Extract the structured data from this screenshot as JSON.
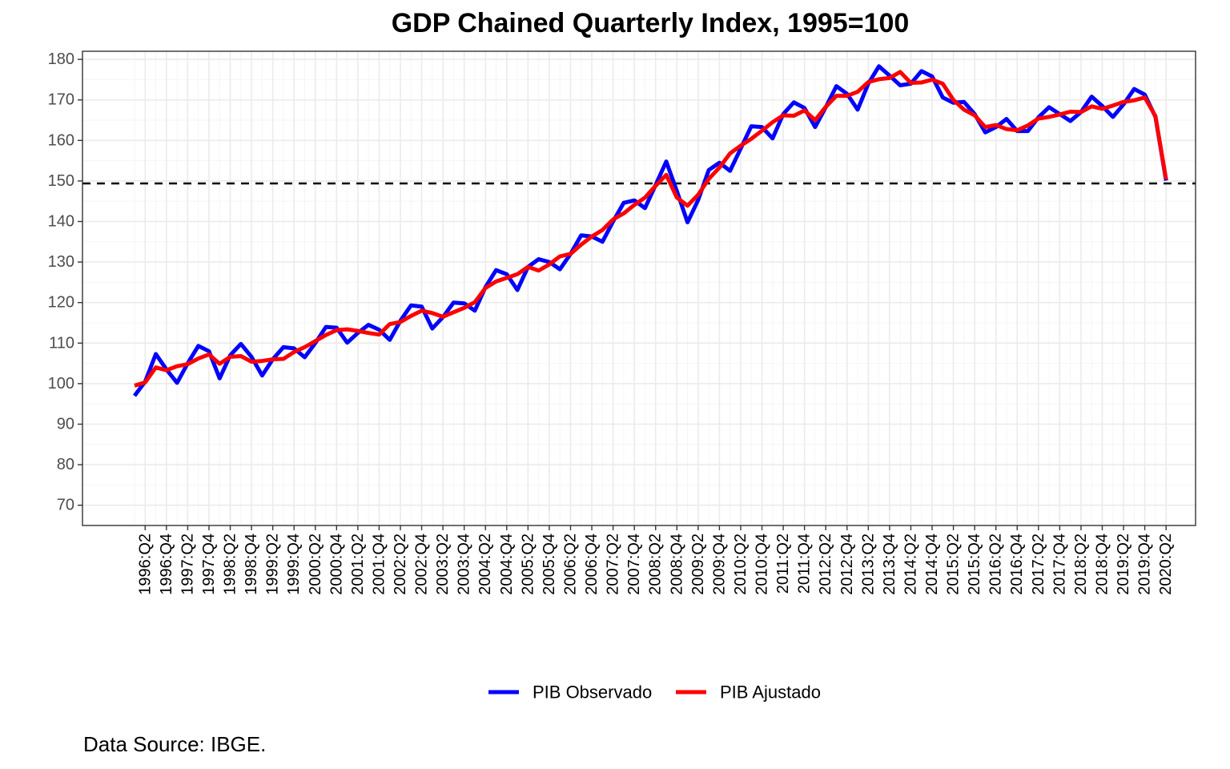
{
  "chart_data": {
    "type": "line",
    "title": "GDP Chained Quarterly Index, 1995=100",
    "xlabel": "",
    "ylabel": "",
    "ylim": [
      65,
      182
    ],
    "yticks": [
      70,
      80,
      90,
      100,
      110,
      120,
      130,
      140,
      150,
      160,
      170,
      180
    ],
    "x": [
      "1996:Q1",
      "1996:Q2",
      "1996:Q3",
      "1996:Q4",
      "1997:Q1",
      "1997:Q2",
      "1997:Q3",
      "1997:Q4",
      "1998:Q1",
      "1998:Q2",
      "1998:Q3",
      "1998:Q4",
      "1999:Q1",
      "1999:Q2",
      "1999:Q3",
      "1999:Q4",
      "2000:Q1",
      "2000:Q2",
      "2000:Q3",
      "2000:Q4",
      "2001:Q1",
      "2001:Q2",
      "2001:Q3",
      "2001:Q4",
      "2002:Q1",
      "2002:Q2",
      "2002:Q3",
      "2002:Q4",
      "2003:Q1",
      "2003:Q2",
      "2003:Q3",
      "2003:Q4",
      "2004:Q1",
      "2004:Q2",
      "2004:Q3",
      "2004:Q4",
      "2005:Q1",
      "2005:Q2",
      "2005:Q3",
      "2005:Q4",
      "2006:Q1",
      "2006:Q2",
      "2006:Q3",
      "2006:Q4",
      "2007:Q1",
      "2007:Q2",
      "2007:Q3",
      "2007:Q4",
      "2008:Q1",
      "2008:Q2",
      "2008:Q3",
      "2008:Q4",
      "2009:Q1",
      "2009:Q2",
      "2009:Q3",
      "2009:Q4",
      "2010:Q1",
      "2010:Q2",
      "2010:Q3",
      "2010:Q4",
      "2011:Q1",
      "2011:Q2",
      "2011:Q3",
      "2011:Q4",
      "2012:Q1",
      "2012:Q2",
      "2012:Q3",
      "2012:Q4",
      "2013:Q1",
      "2013:Q2",
      "2013:Q3",
      "2013:Q4",
      "2014:Q1",
      "2014:Q2",
      "2014:Q3",
      "2014:Q4",
      "2015:Q1",
      "2015:Q2",
      "2015:Q3",
      "2015:Q4",
      "2016:Q1",
      "2016:Q2",
      "2016:Q3",
      "2016:Q4",
      "2017:Q1",
      "2017:Q2",
      "2017:Q3",
      "2017:Q4",
      "2018:Q1",
      "2018:Q2",
      "2018:Q3",
      "2018:Q4",
      "2019:Q1",
      "2019:Q2",
      "2019:Q3",
      "2019:Q4",
      "2020:Q1",
      "2020:Q2"
    ],
    "xtick_labels": [
      "1996:Q2",
      "1996:Q4",
      "1997:Q2",
      "1997:Q4",
      "1998:Q2",
      "1998:Q4",
      "1999:Q2",
      "1999:Q4",
      "2000:Q2",
      "2000:Q4",
      "2001:Q2",
      "2001:Q4",
      "2002:Q2",
      "2002:Q4",
      "2003:Q2",
      "2003:Q4",
      "2004:Q2",
      "2004:Q4",
      "2005:Q2",
      "2005:Q4",
      "2006:Q2",
      "2006:Q4",
      "2007:Q2",
      "2007:Q4",
      "2008:Q2",
      "2008:Q4",
      "2009:Q2",
      "2009:Q4",
      "2010:Q2",
      "2010:Q4",
      "2011:Q2",
      "2011:Q4",
      "2012:Q2",
      "2012:Q4",
      "2013:Q2",
      "2013:Q4",
      "2014:Q2",
      "2014:Q4",
      "2015:Q2",
      "2015:Q4",
      "2016:Q2",
      "2016:Q4",
      "2017:Q2",
      "2017:Q4",
      "2018:Q2",
      "2018:Q4",
      "2019:Q2",
      "2019:Q4",
      "2020:Q2"
    ],
    "reference_line": {
      "y": 149.4,
      "style": "dashed",
      "color": "#000000"
    },
    "series": [
      {
        "name": "PIB Observado",
        "color": "#0000ff",
        "values": [
          97.0,
          100.5,
          107.3,
          103.5,
          100.2,
          105.0,
          109.3,
          108.0,
          101.3,
          107.0,
          109.8,
          106.6,
          102.0,
          106.0,
          109.0,
          108.7,
          106.5,
          110.0,
          114.0,
          113.8,
          110.1,
          112.5,
          114.5,
          113.3,
          110.8,
          115.5,
          119.3,
          119.0,
          113.6,
          116.4,
          120.0,
          119.8,
          118.0,
          123.8,
          128.0,
          127.0,
          123.1,
          128.8,
          130.7,
          130.0,
          128.2,
          132.0,
          136.6,
          136.3,
          135.0,
          140.0,
          144.6,
          145.2,
          143.3,
          149.0,
          154.8,
          147.5,
          139.8,
          145.3,
          152.7,
          154.5,
          152.5,
          158.0,
          163.5,
          163.3,
          160.5,
          166.5,
          169.4,
          168.0,
          163.3,
          168.2,
          173.4,
          171.5,
          167.6,
          174.0,
          178.3,
          176.0,
          173.6,
          174.0,
          177.1,
          175.8,
          170.6,
          169.3,
          169.5,
          166.5,
          162.0,
          163.3,
          165.3,
          162.3,
          162.3,
          165.7,
          168.2,
          166.5,
          164.8,
          167.0,
          170.8,
          168.5,
          165.8,
          168.9,
          172.7,
          171.3,
          165.8,
          150.1
        ]
      },
      {
        "name": "PIB Ajustado",
        "color": "#ff0000",
        "values": [
          99.5,
          100.3,
          104.0,
          103.3,
          104.3,
          104.8,
          106.2,
          107.2,
          104.9,
          106.6,
          106.8,
          105.4,
          105.6,
          106.0,
          106.1,
          107.8,
          109.0,
          110.5,
          112.0,
          113.2,
          113.4,
          113.0,
          112.5,
          112.1,
          114.7,
          115.2,
          116.7,
          118.0,
          117.4,
          116.5,
          117.6,
          118.7,
          120.1,
          123.6,
          125.2,
          126.1,
          127.0,
          128.8,
          127.9,
          129.4,
          131.4,
          132.0,
          134.3,
          136.3,
          137.9,
          140.5,
          142.0,
          144.1,
          145.9,
          148.8,
          151.5,
          145.9,
          143.9,
          146.6,
          150.5,
          153.3,
          156.8,
          158.7,
          160.4,
          162.4,
          164.5,
          166.2,
          166.1,
          167.4,
          165.0,
          168.3,
          171.0,
          171.0,
          172.0,
          174.4,
          175.1,
          175.4,
          176.9,
          174.2,
          174.3,
          175.0,
          174.0,
          170.0,
          167.6,
          166.2,
          163.3,
          163.8,
          162.8,
          162.5,
          163.7,
          165.4,
          165.8,
          166.4,
          167.1,
          167.0,
          168.4,
          167.8,
          168.6,
          169.5,
          169.9,
          170.6,
          166.0,
          150.4
        ]
      }
    ],
    "legend": {
      "position": "bottom",
      "entries": [
        "PIB Observado",
        "PIB Ajustado"
      ]
    },
    "grid": true,
    "caption": "Data Source: IBGE."
  }
}
